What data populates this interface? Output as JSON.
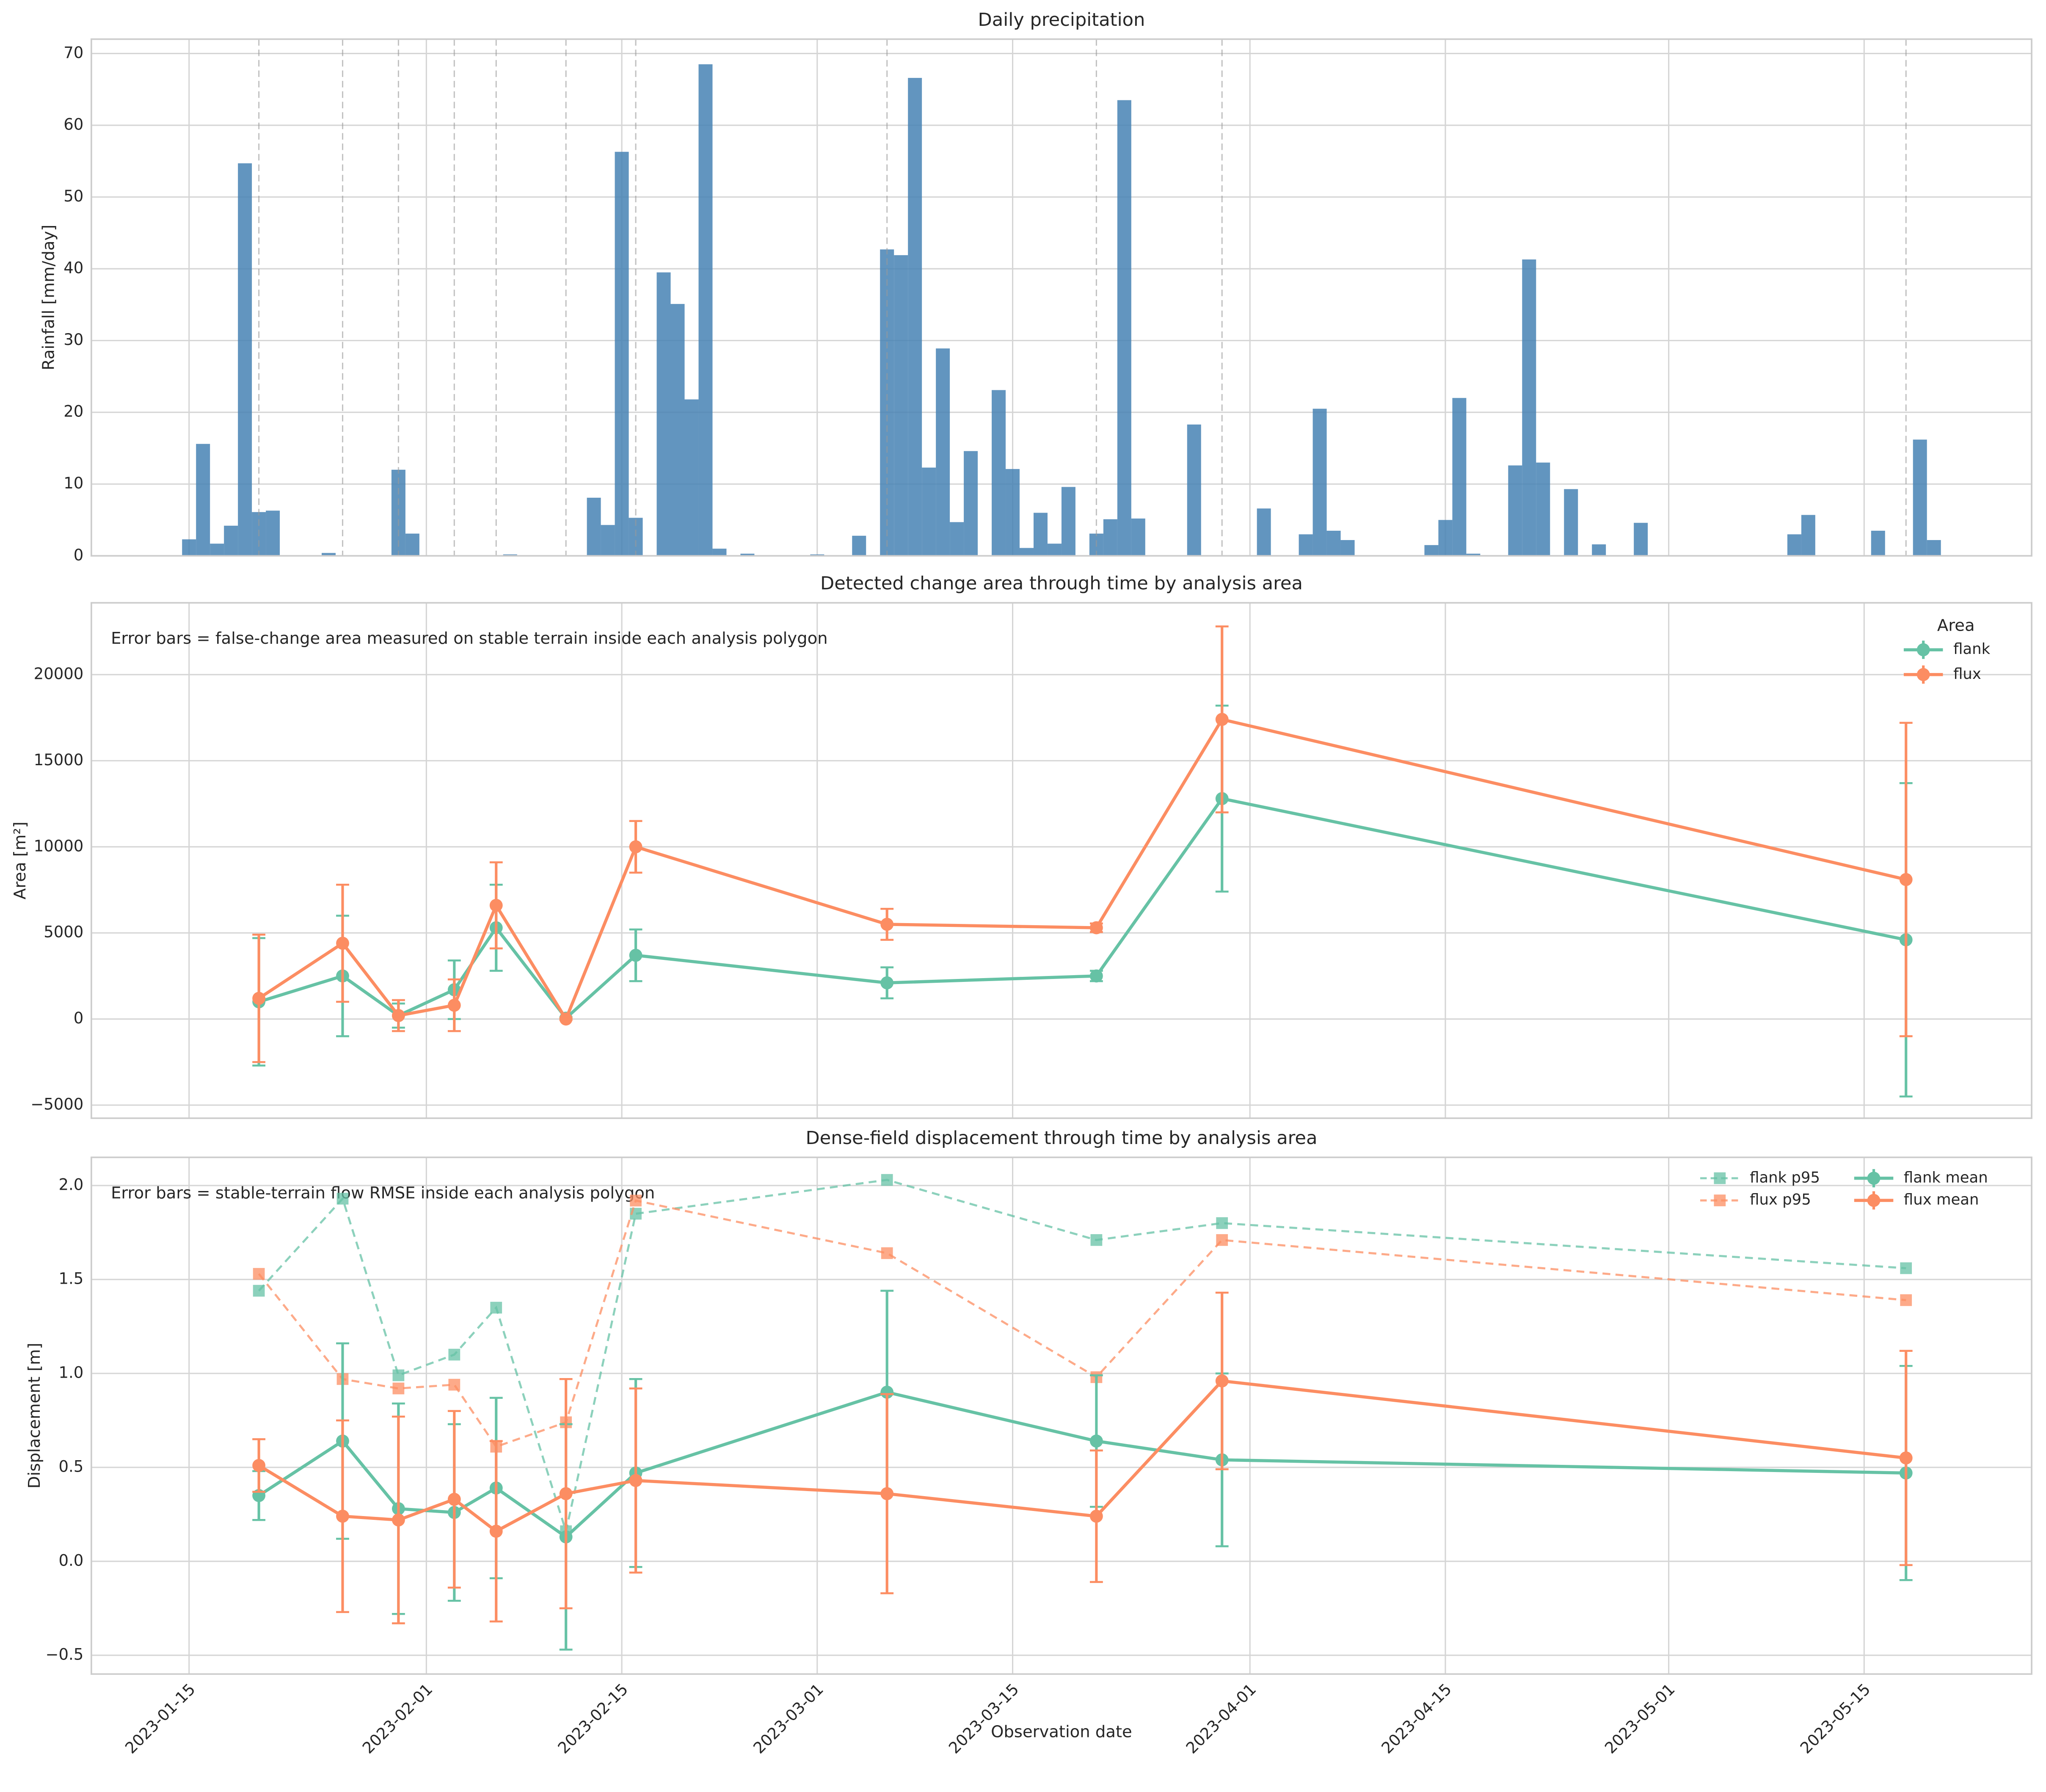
{
  "chart_data": [
    {
      "type": "bar",
      "title": "Daily precipitation",
      "ylabel": "Rainfall [mm/day]",
      "color": "#4682b4",
      "grid": true,
      "x": [
        "2023-01-15",
        "2023-01-16",
        "2023-01-17",
        "2023-01-18",
        "2023-01-19",
        "2023-01-20",
        "2023-01-21",
        "2023-01-25",
        "2023-01-30",
        "2023-01-31",
        "2023-02-07",
        "2023-02-13",
        "2023-02-14",
        "2023-02-15",
        "2023-02-16",
        "2023-02-18",
        "2023-02-19",
        "2023-02-20",
        "2023-02-21",
        "2023-02-22",
        "2023-02-24",
        "2023-03-01",
        "2023-03-04",
        "2023-03-06",
        "2023-03-07",
        "2023-03-08",
        "2023-03-09",
        "2023-03-10",
        "2023-03-11",
        "2023-03-12",
        "2023-03-14",
        "2023-03-15",
        "2023-03-16",
        "2023-03-17",
        "2023-03-18",
        "2023-03-19",
        "2023-03-21",
        "2023-03-22",
        "2023-03-23",
        "2023-03-24",
        "2023-03-28",
        "2023-04-02",
        "2023-04-05",
        "2023-04-06",
        "2023-04-07",
        "2023-04-08",
        "2023-04-14",
        "2023-04-15",
        "2023-04-16",
        "2023-04-17",
        "2023-04-20",
        "2023-04-21",
        "2023-04-22",
        "2023-04-24",
        "2023-04-26",
        "2023-04-29",
        "2023-05-10",
        "2023-05-11",
        "2023-05-16",
        "2023-05-19",
        "2023-05-20"
      ],
      "values": [
        2.3,
        15.6,
        1.7,
        4.2,
        54.7,
        6.1,
        6.3,
        0.4,
        12.0,
        3.1,
        0.2,
        8.1,
        4.3,
        56.3,
        5.3,
        39.5,
        35.1,
        21.8,
        68.5,
        1.0,
        0.3,
        0.2,
        2.8,
        42.7,
        41.9,
        66.6,
        12.3,
        28.9,
        4.7,
        14.6,
        23.1,
        12.1,
        1.1,
        6.0,
        1.7,
        9.6,
        3.1,
        5.1,
        63.5,
        5.2,
        18.3,
        6.6,
        3.0,
        20.5,
        3.5,
        2.2,
        1.5,
        5.0,
        22.0,
        0.3,
        12.6,
        41.3,
        13.0,
        9.3,
        1.6,
        4.6,
        3.0,
        5.7,
        3.5,
        16.2,
        2.2
      ],
      "observation_dates": [
        "2023-01-20",
        "2023-01-26",
        "2023-01-30",
        "2023-02-03",
        "2023-02-06",
        "2023-02-11",
        "2023-02-16",
        "2023-03-06",
        "2023-03-21",
        "2023-03-30",
        "2023-05-18"
      ],
      "xlim": [
        "2023-01-08",
        "2023-05-27"
      ],
      "ylim": [
        0,
        72
      ],
      "yticks": [
        0,
        10,
        20,
        30,
        40,
        50,
        60,
        70
      ]
    },
    {
      "type": "line",
      "title": "Detected change area through time by analysis area",
      "ylabel": "Area [m²]",
      "annotation": "Error bars = false-change area measured on stable terrain inside each analysis polygon",
      "legend_title": "Area",
      "legend": "upper right",
      "grid": true,
      "x": [
        "2023-01-20",
        "2023-01-26",
        "2023-01-30",
        "2023-02-03",
        "2023-02-06",
        "2023-02-11",
        "2023-02-16",
        "2023-03-06",
        "2023-03-21",
        "2023-03-30",
        "2023-05-18"
      ],
      "series": [
        {
          "name": "flank",
          "color": "#66c2a5",
          "marker": "o",
          "linestyle": "solid",
          "values": [
            1000,
            2500,
            200,
            1700,
            5300,
            50,
            3700,
            2100,
            2500,
            12800,
            4600
          ],
          "errors": [
            3700,
            3500,
            700,
            1700,
            2500,
            50,
            1500,
            900,
            300,
            5400,
            9100
          ]
        },
        {
          "name": "flux",
          "color": "#fc8d62",
          "marker": "o",
          "linestyle": "solid",
          "values": [
            1200,
            4400,
            200,
            800,
            6600,
            0,
            10000,
            5500,
            5300,
            17400,
            8100
          ],
          "errors": [
            3700,
            3400,
            900,
            1500,
            2500,
            50,
            1500,
            900,
            250,
            5400,
            9100
          ]
        }
      ],
      "xlim": [
        "2023-01-08",
        "2023-05-27"
      ],
      "ylim": [
        -5760,
        24170
      ],
      "yticks": [
        {
          "value": -5000,
          "label": "−5000"
        },
        0,
        5000,
        10000,
        15000,
        20000
      ]
    },
    {
      "type": "line",
      "title": "Dense-field displacement through time by analysis area",
      "ylabel": "Displacement [m]",
      "xlabel": "Observation date",
      "annotation": "Error bars = stable-terrain flow RMSE inside each analysis polygon",
      "legend": "upper right",
      "grid": true,
      "x": [
        "2023-01-20",
        "2023-01-26",
        "2023-01-30",
        "2023-02-03",
        "2023-02-06",
        "2023-02-11",
        "2023-02-16",
        "2023-03-06",
        "2023-03-21",
        "2023-03-30",
        "2023-05-18"
      ],
      "series": [
        {
          "name": "flank p95",
          "color": "#66c2a5",
          "marker": "s",
          "linestyle": "dashed",
          "values": [
            1.44,
            1.93,
            0.99,
            1.1,
            1.35,
            0.16,
            1.85,
            2.03,
            1.71,
            1.8,
            1.56
          ]
        },
        {
          "name": "flux p95",
          "color": "#fc8d62",
          "marker": "s",
          "linestyle": "dashed",
          "values": [
            1.53,
            0.97,
            0.92,
            0.94,
            0.61,
            0.74,
            1.92,
            1.64,
            0.98,
            1.71,
            1.39
          ]
        },
        {
          "name": "flank mean",
          "color": "#66c2a5",
          "marker": "o",
          "linestyle": "solid",
          "values": [
            0.35,
            0.64,
            0.28,
            0.26,
            0.39,
            0.13,
            0.47,
            0.9,
            0.64,
            0.54,
            0.47
          ],
          "errors": [
            0.13,
            0.52,
            0.56,
            0.47,
            0.48,
            0.6,
            0.5,
            0.54,
            0.35,
            0.46,
            0.57
          ]
        },
        {
          "name": "flux mean",
          "color": "#fc8d62",
          "marker": "o",
          "linestyle": "solid",
          "values": [
            0.51,
            0.24,
            0.22,
            0.33,
            0.16,
            0.36,
            0.43,
            0.36,
            0.24,
            0.96,
            0.55
          ],
          "errors": [
            0.14,
            0.51,
            0.55,
            0.47,
            0.48,
            0.61,
            0.49,
            0.53,
            0.35,
            0.47,
            0.57
          ]
        }
      ],
      "xlim": [
        "2023-01-08",
        "2023-05-27"
      ],
      "ylim": [
        -0.6,
        2.15
      ],
      "yticks": [
        {
          "value": -0.5,
          "label": "−0.5"
        },
        {
          "value": 0,
          "label": "0.0"
        },
        0.5,
        {
          "value": 1,
          "label": "1.0"
        },
        1.5,
        {
          "value": 2,
          "label": "2.0"
        }
      ],
      "xticks": [
        "2023-01-15",
        "2023-02-01",
        "2023-02-15",
        "2023-03-01",
        "2023-03-15",
        "2023-04-01",
        "2023-04-15",
        "2023-05-01",
        "2023-05-15"
      ]
    }
  ]
}
